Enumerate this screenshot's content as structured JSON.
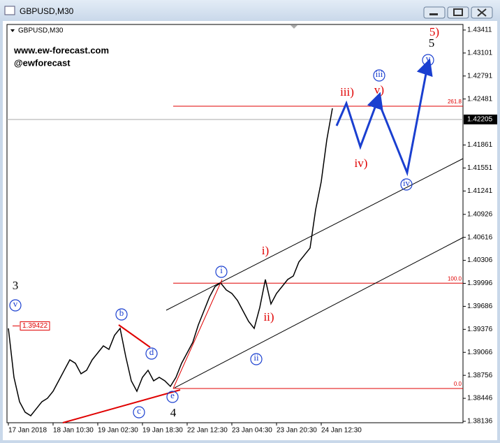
{
  "window": {
    "title": "GBPUSD,M30"
  },
  "chart_data": {
    "type": "line",
    "title": "GBPUSD,M30",
    "watermark": [
      "www.ew-forecast.com",
      "@ewforecast"
    ],
    "categories": [
      "17 Jan 2018",
      null,
      null,
      null,
      null,
      null,
      null,
      null,
      "18 Jan 10:30",
      null,
      null,
      null,
      null,
      null,
      null,
      null,
      "19 Jan 02:30",
      null,
      null,
      null,
      null,
      null,
      null,
      null,
      "19 Jan 18:30",
      null,
      null,
      null,
      null,
      null,
      null,
      null,
      "22 Jan 12:30",
      null,
      null,
      null,
      null,
      null,
      null,
      null,
      "23 Jan 04:30",
      null,
      null,
      null,
      null,
      null,
      null,
      null,
      "23 Jan 20:30",
      null,
      null,
      null,
      null,
      null,
      null,
      null,
      "24 Jan 12:30",
      null,
      null
    ],
    "values": [
      1.39389,
      1.38729,
      1.384,
      1.38259,
      1.38211,
      1.38306,
      1.384,
      1.38447,
      1.38541,
      1.38682,
      1.38824,
      1.38965,
      1.38918,
      1.38777,
      1.38824,
      1.38965,
      1.39059,
      1.39153,
      1.39106,
      1.39295,
      1.39389,
      1.39012,
      1.38682,
      1.38541,
      1.38729,
      1.38824,
      1.38682,
      1.38729,
      1.38682,
      1.38607,
      1.38729,
      1.38918,
      1.39059,
      1.392,
      1.39436,
      1.39624,
      1.39813,
      1.39954,
      1.40001,
      1.39907,
      1.3986,
      1.39766,
      1.39624,
      1.39483,
      1.39389,
      1.39671,
      1.40048,
      1.39718,
      1.3986,
      1.39954,
      1.40048,
      1.40095,
      1.40284,
      1.40378,
      1.40472,
      1.4099,
      1.41367,
      1.41932,
      1.42356
    ],
    "color": "#000000",
    "ylim": [
      1.38117,
      1.43486
    ],
    "yticks": [
      1.43411,
      1.43101,
      1.42791,
      1.42481,
      1.41861,
      1.41551,
      1.41241,
      1.40926,
      1.40616,
      1.40306,
      1.39996,
      1.39686,
      1.39376,
      1.39066,
      1.38756,
      1.38446,
      1.38136
    ],
    "current_price": 1.42205,
    "marker_price": 1.39422,
    "levels": [
      {
        "label": "261.8",
        "value": 1.42384
      },
      {
        "label": "100.0",
        "value": 1.39999
      },
      {
        "label": "0.0",
        "value": 1.38579
      }
    ],
    "level_color": "#e00000"
  },
  "annotations": [
    "3",
    "v",
    "b",
    "d",
    "c",
    "e",
    "4",
    "i",
    "ii",
    "i)",
    "ii)",
    "iii)",
    "iv)",
    "v)",
    "iii",
    "iv",
    "v",
    "5)",
    "5"
  ]
}
